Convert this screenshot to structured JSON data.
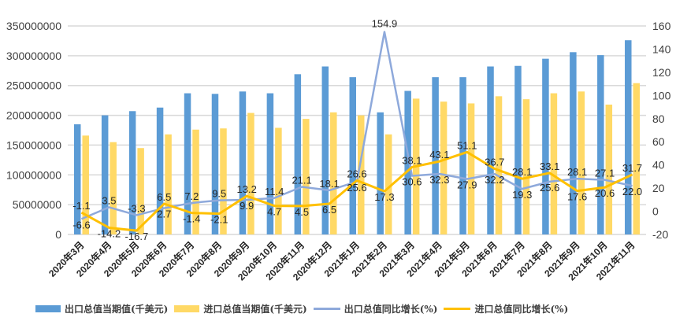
{
  "chart_data": {
    "type": "bar",
    "title": "",
    "categories": [
      "2020年3月",
      "2020年4月",
      "2020年5月",
      "2020年6月",
      "2020年7月",
      "2020年8月",
      "2020年9月",
      "2020年10月",
      "2020年11月",
      "2020年12月",
      "2021年1月",
      "2021年2月",
      "2021年3月",
      "2021年4月",
      "2021年5月",
      "2021年6月",
      "2021年7月",
      "2021年8月",
      "2021年9月",
      "2021年10月",
      "2021年11月"
    ],
    "series": [
      {
        "name": "出口总值当期值(千美元)",
        "type": "bar",
        "axis": "left",
        "color": "#5B9BD5",
        "values": [
          185000000,
          200000000,
          207000000,
          213000000,
          237000000,
          236000000,
          240000000,
          237000000,
          269000000,
          282000000,
          264000000,
          205000000,
          241000000,
          264000000,
          264000000,
          282000000,
          283000000,
          295000000,
          306000000,
          301000000,
          326000000
        ]
      },
      {
        "name": "进口总值当期值(千美元)",
        "type": "bar",
        "axis": "left",
        "color": "#FFD966",
        "values": [
          166000000,
          155000000,
          145000000,
          168000000,
          176000000,
          178000000,
          204000000,
          179000000,
          194000000,
          205000000,
          200000000,
          168000000,
          228000000,
          223000000,
          220000000,
          232000000,
          227000000,
          237000000,
          240000000,
          218000000,
          254000000
        ]
      },
      {
        "name": "出口总值同比增长(%)",
        "type": "line",
        "axis": "right",
        "color": "#8EA9DB",
        "values": [
          -6.6,
          3.5,
          -3.3,
          2.7,
          7.2,
          9.5,
          9.9,
          11.4,
          21.1,
          18.1,
          25.6,
          154.9,
          30.6,
          32.3,
          27.9,
          32.2,
          19.3,
          25.6,
          28.1,
          27.1,
          22.0
        ],
        "labels": [
          "-6.6",
          "3.5",
          "-3.3",
          "2.7",
          "7.2",
          "9.5",
          "9.9",
          "11.4",
          "21.1",
          "18.1",
          "25.6",
          "154.9",
          "30.6",
          "32.3",
          "27.9",
          "32.2",
          "19.3",
          "25.6",
          "28.1",
          "27.1",
          "22.0"
        ]
      },
      {
        "name": "进口总值同比增长(%)",
        "type": "line",
        "axis": "right",
        "color": "#FFC000",
        "values": [
          -1.1,
          -14.2,
          -16.7,
          6.5,
          -1.4,
          -2.1,
          13.2,
          4.7,
          4.5,
          6.5,
          26.6,
          17.3,
          38.1,
          43.1,
          51.1,
          36.7,
          28.1,
          33.1,
          17.6,
          20.6,
          31.7
        ],
        "labels": [
          "-1.1",
          "-14.2",
          "-16.7",
          "6.5",
          "-1.4",
          "-2.1",
          "13.2",
          "4.7",
          "4.5",
          "6.5",
          "26.6",
          "17.3",
          "38.1",
          "43.1",
          "51.1",
          "36.7",
          "28.1",
          "33.1",
          "17.6",
          "20.6",
          "31.7"
        ]
      }
    ],
    "y_left": {
      "min": 0,
      "max": 350000000,
      "step": 50000000,
      "ticks": [
        "0",
        "50000000",
        "100000000",
        "150000000",
        "200000000",
        "250000000",
        "300000000",
        "350000000"
      ]
    },
    "y_right": {
      "min": -20,
      "max": 160,
      "step": 20,
      "ticks": [
        "-20",
        "0",
        "20",
        "40",
        "60",
        "80",
        "100",
        "120",
        "140",
        "160"
      ]
    },
    "grid": true,
    "legend_position": "bottom"
  }
}
